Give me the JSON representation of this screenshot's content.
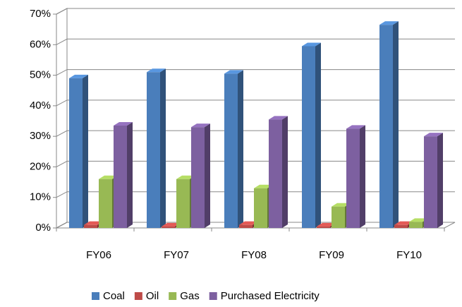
{
  "chart_data": {
    "type": "bar3d",
    "categories": [
      "FY06",
      "FY07",
      "FY08",
      "FY09",
      "FY10"
    ],
    "series": [
      {
        "name": "Coal",
        "color": "#4a7ebb",
        "values": [
          49,
          51,
          50.5,
          59.5,
          66.5
        ]
      },
      {
        "name": "Oil",
        "color": "#be4b48",
        "values": [
          1,
          0.5,
          1,
          0.5,
          1
        ]
      },
      {
        "name": "Gas",
        "color": "#98b954",
        "values": [
          16,
          16,
          13,
          7,
          2
        ]
      },
      {
        "name": "Purchased Electricity",
        "color": "#7d60a0",
        "values": [
          33.5,
          33,
          35.5,
          32.5,
          30
        ]
      }
    ],
    "ylim": [
      0,
      70
    ],
    "yticks": [
      {
        "value": 0,
        "label": "0%"
      },
      {
        "value": 10,
        "label": "10%"
      },
      {
        "value": 20,
        "label": "20%"
      },
      {
        "value": 30,
        "label": "30%"
      },
      {
        "value": 40,
        "label": "40%"
      },
      {
        "value": 50,
        "label": "50%"
      },
      {
        "value": 60,
        "label": "60%"
      },
      {
        "value": 70,
        "label": "70%"
      }
    ],
    "grid": true,
    "legend": "bottom"
  }
}
